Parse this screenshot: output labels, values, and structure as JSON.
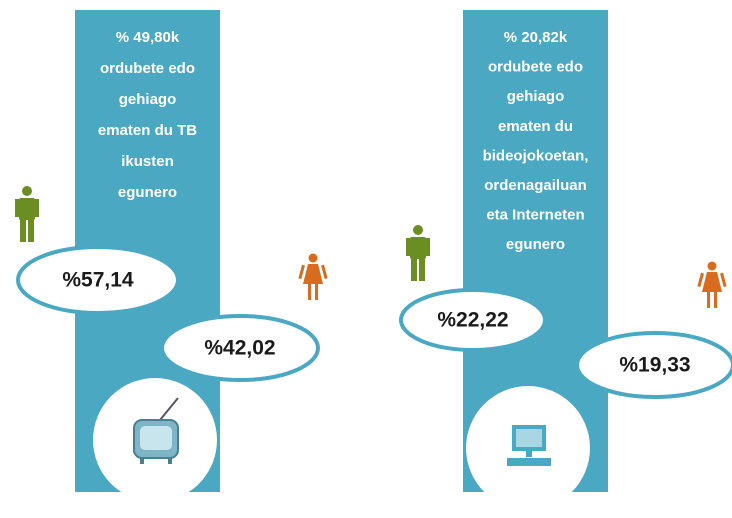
{
  "panels": [
    {
      "lines": [
        "% 49,80k",
        "ordubete edo",
        "gehiago",
        "ematen du TB",
        "ikusten",
        "egunero"
      ],
      "male": "%57,14",
      "female": "%42,02"
    },
    {
      "lines": [
        "% 20,82k",
        "ordubete edo",
        "gehiago",
        "ematen du",
        "bideojokoetan,",
        "ordenagailuan",
        "eta Interneten",
        "egunero"
      ],
      "male": "%22,22",
      "female": "%19,33"
    }
  ]
}
